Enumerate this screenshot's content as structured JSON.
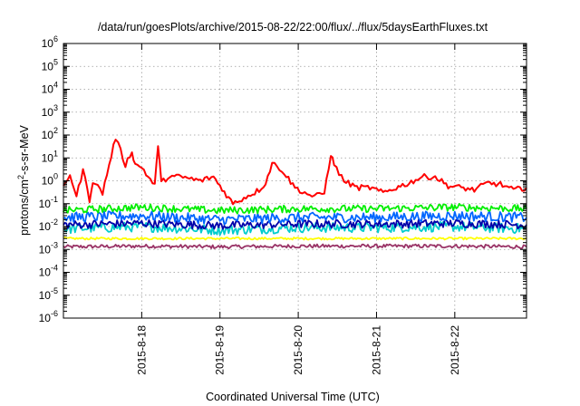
{
  "chart_data": {
    "type": "line",
    "title": "/data/run/goesPlots/archive/2015-08-22/22:00/flux/../flux/5daysEarthFluxes.txt",
    "xlabel": "Coordinated Universal Time (UTC)",
    "ylabel_prefix": "protons/cm",
    "ylabel_exp": "2",
    "ylabel_suffix": "-s-sr-MeV",
    "y_scale": "log",
    "ylim": [
      1e-06,
      1000000.0
    ],
    "y_ticks": [
      {
        "base": "10",
        "exp": "-6",
        "value": 1e-06
      },
      {
        "base": "10",
        "exp": "-5",
        "value": 1e-05
      },
      {
        "base": "10",
        "exp": "-4",
        "value": 0.0001
      },
      {
        "base": "10",
        "exp": "-3",
        "value": 0.001
      },
      {
        "base": "10",
        "exp": "-2",
        "value": 0.01
      },
      {
        "base": "10",
        "exp": "-1",
        "value": 0.1
      },
      {
        "base": "10",
        "exp": "0",
        "value": 1
      },
      {
        "base": "10",
        "exp": "1",
        "value": 10
      },
      {
        "base": "10",
        "exp": "2",
        "value": 100
      },
      {
        "base": "10",
        "exp": "3",
        "value": 1000
      },
      {
        "base": "10",
        "exp": "4",
        "value": 10000
      },
      {
        "base": "10",
        "exp": "5",
        "value": 100000
      },
      {
        "base": "10",
        "exp": "6",
        "value": 1000000
      }
    ],
    "x_ticks": [
      {
        "label": "2015-8-18",
        "value": "2015-08-18 00:00"
      },
      {
        "label": "2015-8-19",
        "value": "2015-08-19 00:00"
      },
      {
        "label": "2015-8-20",
        "value": "2015-08-20 00:00"
      },
      {
        "label": "2015-8-21",
        "value": "2015-08-21 00:00"
      },
      {
        "label": "2015-8-22",
        "value": "2015-08-22 00:00"
      }
    ],
    "xlim": [
      "2015-08-17 00:00",
      "2015-08-22 22:00"
    ],
    "grid": true,
    "series": [
      {
        "color": "#ff0000",
        "x": [
          "2015-08-17 00:00",
          "2015-08-17 02:00",
          "2015-08-17 04:00",
          "2015-08-17 06:00",
          "2015-08-17 08:00",
          "2015-08-17 09:00",
          "2015-08-17 12:00",
          "2015-08-17 16:00",
          "2015-08-17 19:00",
          "2015-08-17 21:00",
          "2015-08-17 22:00",
          "2015-08-18 00:00",
          "2015-08-18 02:00",
          "2015-08-18 04:00",
          "2015-08-18 05:00",
          "2015-08-18 06:00",
          "2015-08-18 08:00",
          "2015-08-18 12:00",
          "2015-08-18 18:00",
          "2015-08-18 22:00",
          "2015-08-19 00:00",
          "2015-08-19 04:00",
          "2015-08-19 08:00",
          "2015-08-19 12:00",
          "2015-08-19 14:00",
          "2015-08-19 16:00",
          "2015-08-19 19:00",
          "2015-08-19 23:00",
          "2015-08-20 02:00",
          "2015-08-20 05:00",
          "2015-08-20 08:00",
          "2015-08-20 10:00",
          "2015-08-20 11:00",
          "2015-08-20 14:00",
          "2015-08-20 18:00",
          "2015-08-20 22:00",
          "2015-08-21 02:00",
          "2015-08-21 06:00",
          "2015-08-21 10:00",
          "2015-08-21 14:00",
          "2015-08-21 18:00",
          "2015-08-21 22:00",
          "2015-08-22 02:00",
          "2015-08-22 06:00",
          "2015-08-22 10:00",
          "2015-08-22 14:00",
          "2015-08-22 18:00",
          "2015-08-22 22:00"
        ],
        "values": [
          0.5,
          2,
          0.2,
          3,
          0.15,
          1,
          0.3,
          80,
          5,
          20,
          5,
          4,
          1.5,
          0.6,
          40,
          0.8,
          1.5,
          1.5,
          1,
          1.5,
          0.6,
          0.1,
          0.2,
          0.4,
          0.8,
          6,
          3,
          0.5,
          0.3,
          0.2,
          0.3,
          15,
          5,
          1,
          0.5,
          0.5,
          0.3,
          0.5,
          0.8,
          1.5,
          1.5,
          0.6,
          0.5,
          0.4,
          0.8,
          0.7,
          0.4,
          0.5
        ]
      },
      {
        "color": "#00ee00",
        "x": [
          "2015-08-17 00:00",
          "2015-08-18 00:00",
          "2015-08-19 00:00",
          "2015-08-20 00:00",
          "2015-08-21 00:00",
          "2015-08-22 00:00",
          "2015-08-22 22:00"
        ],
        "values": [
          0.05,
          0.07,
          0.05,
          0.06,
          0.06,
          0.07,
          0.06
        ]
      },
      {
        "color": "#0066ff",
        "x": [
          "2015-08-17 00:00",
          "2015-08-18 00:00",
          "2015-08-19 00:00",
          "2015-08-20 00:00",
          "2015-08-21 00:00",
          "2015-08-22 00:00",
          "2015-08-22 22:00"
        ],
        "values": [
          0.025,
          0.03,
          0.02,
          0.025,
          0.025,
          0.03,
          0.025
        ]
      },
      {
        "color": "#00cccc",
        "x": [
          "2015-08-17 00:00",
          "2015-08-18 00:00",
          "2015-08-19 00:00",
          "2015-08-20 00:00",
          "2015-08-21 00:00",
          "2015-08-22 00:00",
          "2015-08-22 22:00"
        ],
        "values": [
          0.008,
          0.01,
          0.007,
          0.009,
          0.009,
          0.01,
          0.008
        ]
      },
      {
        "color": "#0000aa",
        "x": [
          "2015-08-17 00:00",
          "2015-08-18 00:00",
          "2015-08-19 00:00",
          "2015-08-20 00:00",
          "2015-08-21 00:00",
          "2015-08-22 00:00",
          "2015-08-22 22:00"
        ],
        "values": [
          0.012,
          0.014,
          0.011,
          0.013,
          0.013,
          0.014,
          0.012
        ]
      },
      {
        "color": "#ffff00",
        "x": [
          "2015-08-17 00:00",
          "2015-08-18 00:00",
          "2015-08-19 00:00",
          "2015-08-20 00:00",
          "2015-08-21 00:00",
          "2015-08-22 00:00",
          "2015-08-22 22:00"
        ],
        "values": [
          0.003,
          0.003,
          0.003,
          0.003,
          0.003,
          0.003,
          0.003
        ]
      },
      {
        "color": "#993366",
        "x": [
          "2015-08-17 00:00",
          "2015-08-18 00:00",
          "2015-08-19 00:00",
          "2015-08-20 00:00",
          "2015-08-21 00:00",
          "2015-08-22 00:00",
          "2015-08-22 22:00"
        ],
        "values": [
          0.0013,
          0.0014,
          0.0013,
          0.0014,
          0.0014,
          0.0014,
          0.0013
        ]
      }
    ]
  }
}
